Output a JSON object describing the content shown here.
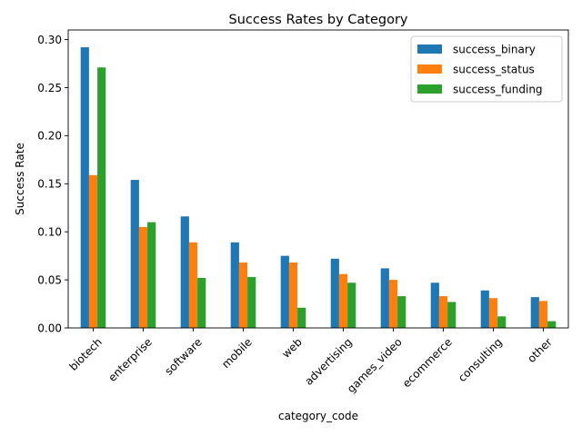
{
  "chart_data": {
    "type": "bar",
    "title": "Success Rates by Category",
    "xlabel": "category_code",
    "ylabel": "Success Rate",
    "ylim": [
      0,
      0.3
    ],
    "yticks": [
      0.0,
      0.05,
      0.1,
      0.15,
      0.2,
      0.25,
      0.3
    ],
    "ytick_labels": [
      "0.00",
      "0.05",
      "0.10",
      "0.15",
      "0.20",
      "0.25",
      "0.30"
    ],
    "grid": false,
    "legend_position": "top-right",
    "categories": [
      "biotech",
      "enterprise",
      "software",
      "mobile",
      "web",
      "advertising",
      "games_video",
      "ecommerce",
      "consulting",
      "other"
    ],
    "series": [
      {
        "name": "success_binary",
        "color": "#1f77b4",
        "values": [
          0.292,
          0.154,
          0.116,
          0.089,
          0.075,
          0.072,
          0.062,
          0.047,
          0.039,
          0.032
        ]
      },
      {
        "name": "success_status",
        "color": "#ff7f0e",
        "values": [
          0.159,
          0.105,
          0.089,
          0.068,
          0.068,
          0.056,
          0.05,
          0.033,
          0.031,
          0.028
        ]
      },
      {
        "name": "success_funding",
        "color": "#2ca02c",
        "values": [
          0.271,
          0.11,
          0.052,
          0.053,
          0.021,
          0.047,
          0.033,
          0.027,
          0.012,
          0.007
        ]
      }
    ]
  }
}
